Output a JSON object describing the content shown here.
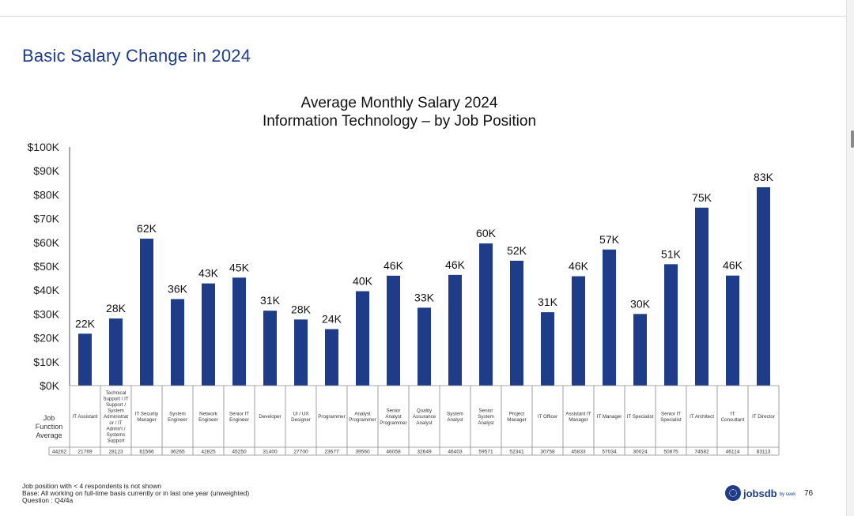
{
  "slide": {
    "title": "Basic Salary Change in 2024",
    "page_number": "76"
  },
  "footnotes": [
    "Job position with < 4 respondents is not shown",
    "Base: All working on full-time basis currently or in last one year (unweighted)",
    "Question : Q4/4a"
  ],
  "logo": {
    "name": "jobsdb",
    "sub": "by seek",
    "icon": "jobsdb-logo-icon"
  },
  "colors": {
    "bar": "#1f3c88",
    "title": "#1f3c88"
  },
  "chart_data": {
    "type": "bar",
    "title": "Average Monthly Salary 2024",
    "subtitle": "Information Technology – by Job Position",
    "ylim": [
      0,
      100000
    ],
    "yticks": [
      "$0K",
      "$10K",
      "$20K",
      "$30K",
      "$40K",
      "$50K",
      "$60K",
      "$70K",
      "$80K",
      "$90K",
      "$100K"
    ],
    "grid": false,
    "categories": [
      "IT Assistant",
      "Technical Support / IT Support / System Administrator / IT Admin't / Systems Support",
      "IT Security Manager",
      "System Engineer",
      "Network Engineer",
      "Senior IT Engineer",
      "Developer",
      "UI / UX Designer",
      "Programmer",
      "Analyst Programmer",
      "Senior Analyst Programmer",
      "Quality Assurance Analyst",
      "System Analyst",
      "Senior System Analyst",
      "Project Manager",
      "IT Officer",
      "Assistant IT Manager",
      "IT Manager",
      "IT Specialist",
      "Senior IT Specialist",
      "IT Architect",
      "IT Consultant",
      "IT Director"
    ],
    "category_lines": [
      [
        "IT Assistant"
      ],
      [
        "Technical",
        "Support / IT",
        "Support /",
        "System",
        "Administrat",
        "or / IT",
        "Admin't /",
        "Systems",
        "Support"
      ],
      [
        "IT Security",
        "Manager"
      ],
      [
        "System",
        "Engineer"
      ],
      [
        "Network",
        "Engineer"
      ],
      [
        "Senior IT",
        "Engineer"
      ],
      [
        "Developer"
      ],
      [
        "UI / UX",
        "Designer"
      ],
      [
        "Programmer"
      ],
      [
        "Analyst",
        "Programmer"
      ],
      [
        "Senior",
        "Analyst",
        "Programmer"
      ],
      [
        "Quality",
        "Assurance",
        "Analyst"
      ],
      [
        "System",
        "Analyst"
      ],
      [
        "Senior",
        "System",
        "Analyst"
      ],
      [
        "Project",
        "Manager"
      ],
      [
        "IT Officer"
      ],
      [
        "Assistant IT",
        "Manager"
      ],
      [
        "IT Manager"
      ],
      [
        "IT Specialist"
      ],
      [
        "Senior IT",
        "Specialist"
      ],
      [
        "IT Architect"
      ],
      [
        "IT",
        "Consultant"
      ],
      [
        "IT Director"
      ]
    ],
    "values": [
      21769,
      28123,
      61566,
      36265,
      42825,
      45250,
      31400,
      27700,
      23677,
      39560,
      46058,
      32649,
      46403,
      59571,
      52341,
      30758,
      45833,
      57034,
      30024,
      50875,
      74582,
      46114,
      83113
    ],
    "data_labels": [
      "22K",
      "28K",
      "62K",
      "36K",
      "43K",
      "45K",
      "31K",
      "28K",
      "24K",
      "40K",
      "46K",
      "33K",
      "46K",
      "60K",
      "52K",
      "31K",
      "46K",
      "57K",
      "30K",
      "51K",
      "75K",
      "46K",
      "83K"
    ],
    "table": {
      "row_label_lines": [
        "Job",
        "Function",
        "Average"
      ],
      "row_value": "44262",
      "values": [
        "21769",
        "28123",
        "61566",
        "36265",
        "42825",
        "45250",
        "31400",
        "27700",
        "23677",
        "39560",
        "46058",
        "32649",
        "46403",
        "59571",
        "52341",
        "30758",
        "45833",
        "57034",
        "30024",
        "50875",
        "74582",
        "46114",
        "83113"
      ]
    }
  }
}
